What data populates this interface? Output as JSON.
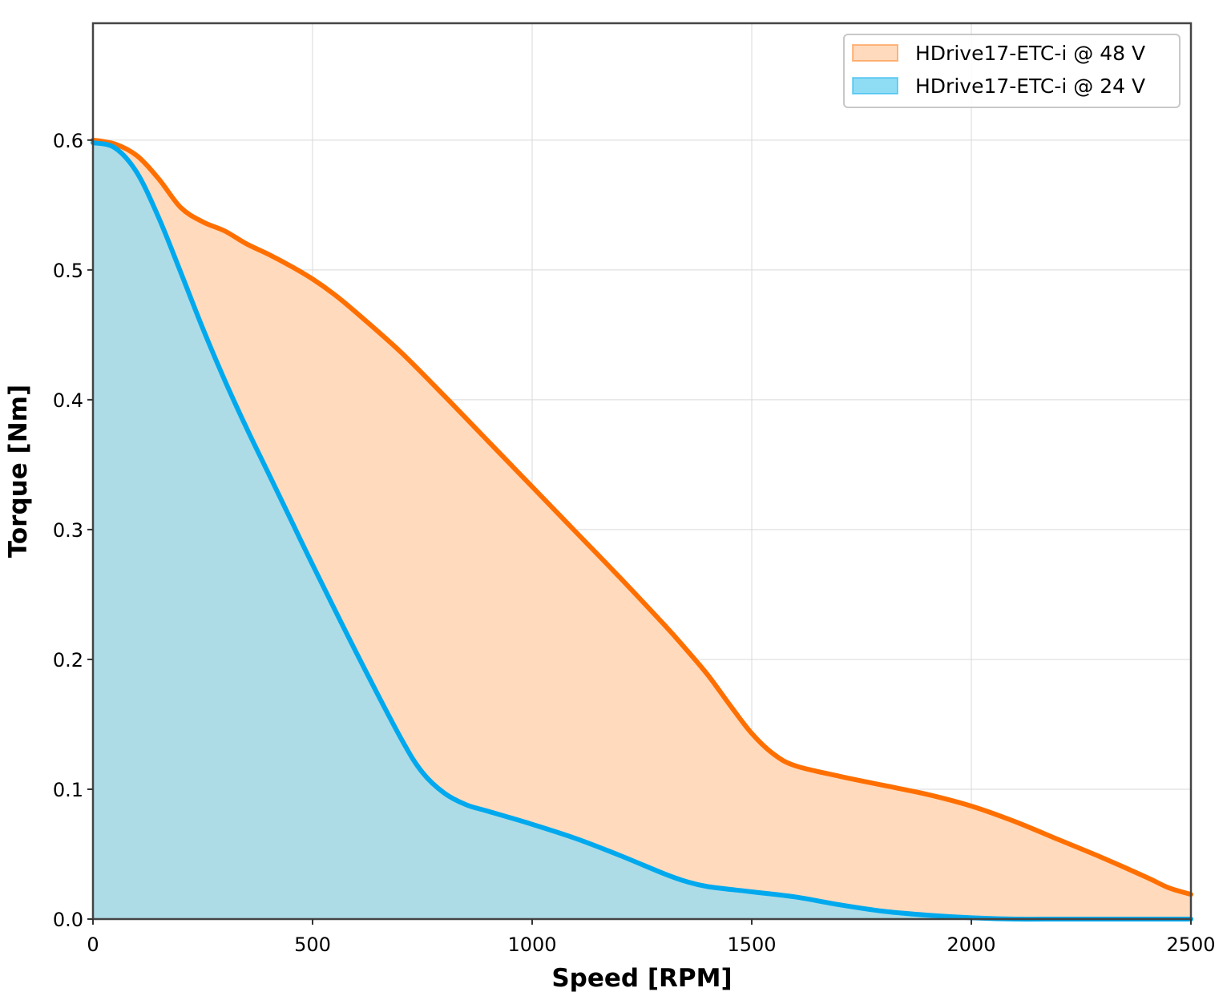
{
  "chart_data": {
    "type": "area",
    "xlabel": "Speed [RPM]",
    "ylabel": "Torque [Nm]",
    "xlim": [
      0,
      2500
    ],
    "ylim": [
      0,
      0.69
    ],
    "x_ticks": [
      "0",
      "500",
      "1000",
      "1500",
      "2000",
      "2500"
    ],
    "y_ticks": [
      "0.0",
      "0.1",
      "0.2",
      "0.3",
      "0.4",
      "0.5",
      "0.6"
    ],
    "grid": true,
    "legend_position": "top-right",
    "series": [
      {
        "name": "HDrive17-ETC-i @ 48 V",
        "line_color": "#ff6f00",
        "fill_color": "#ffdabd",
        "x": [
          0,
          50,
          100,
          150,
          200,
          250,
          300,
          350,
          400,
          450,
          500,
          550,
          600,
          700,
          800,
          900,
          1000,
          1100,
          1200,
          1300,
          1350,
          1400,
          1450,
          1500,
          1550,
          1600,
          1700,
          1800,
          1900,
          2000,
          2100,
          2200,
          2300,
          2400,
          2450,
          2500
        ],
        "values": [
          0.6,
          0.597,
          0.588,
          0.57,
          0.548,
          0.537,
          0.53,
          0.52,
          0.512,
          0.503,
          0.493,
          0.481,
          0.467,
          0.437,
          0.403,
          0.368,
          0.333,
          0.298,
          0.263,
          0.227,
          0.208,
          0.188,
          0.165,
          0.143,
          0.127,
          0.118,
          0.11,
          0.103,
          0.096,
          0.087,
          0.075,
          0.061,
          0.047,
          0.032,
          0.024,
          0.019
        ]
      },
      {
        "name": "HDrive17-ETC-i @ 24 V",
        "line_color": "#00a9ee",
        "fill_color": "#8fdcf5",
        "x": [
          0,
          50,
          100,
          150,
          200,
          250,
          300,
          350,
          400,
          450,
          500,
          600,
          700,
          750,
          800,
          850,
          900,
          1000,
          1100,
          1200,
          1300,
          1350,
          1400,
          1500,
          1600,
          1700,
          1800,
          1900,
          2000,
          2100,
          2200,
          2300,
          2400,
          2500
        ],
        "values": [
          0.598,
          0.594,
          0.575,
          0.54,
          0.498,
          0.455,
          0.415,
          0.378,
          0.343,
          0.308,
          0.273,
          0.205,
          0.14,
          0.113,
          0.097,
          0.088,
          0.083,
          0.073,
          0.062,
          0.049,
          0.035,
          0.029,
          0.025,
          0.021,
          0.017,
          0.011,
          0.006,
          0.003,
          0.001,
          0.0,
          0.0,
          0.0,
          0.0,
          0.0
        ]
      }
    ]
  }
}
